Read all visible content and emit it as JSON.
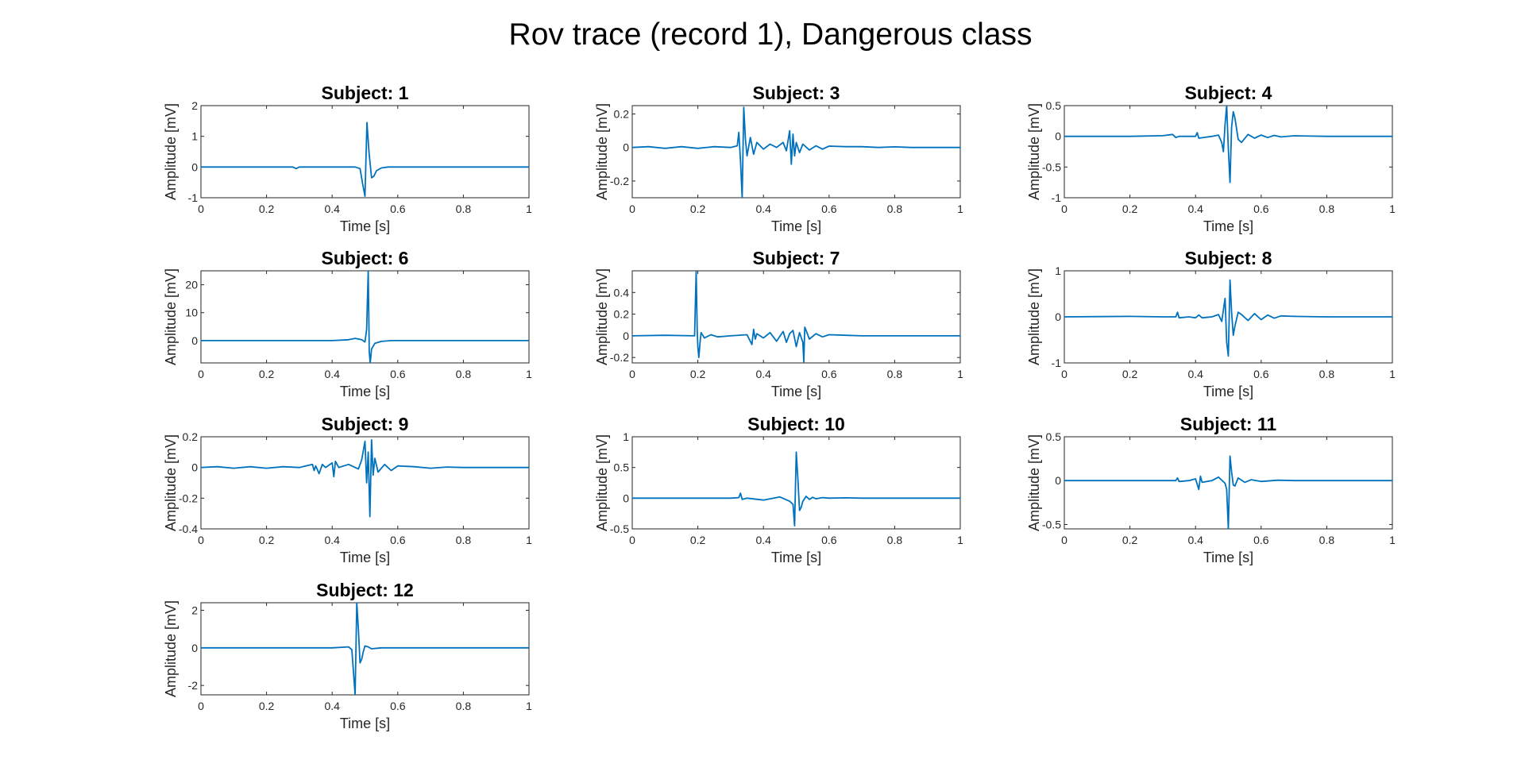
{
  "figure": {
    "title": "Rov trace (record 1), Dangerous class",
    "line_color": "#0072BD"
  },
  "chart_data": [
    {
      "type": "line",
      "title": "Subject: 1",
      "xlabel": "Time [s]",
      "ylabel": "Amplitude [mV]",
      "xlim": [
        0,
        1
      ],
      "ylim": [
        -1,
        2
      ],
      "xticks": [
        0,
        0.2,
        0.4,
        0.6,
        0.8,
        1
      ],
      "xticklabels": [
        "0",
        "0.2",
        "0.4",
        "0.6",
        "0.8",
        "1"
      ],
      "yticks": [
        -1,
        0,
        1,
        2
      ],
      "yticklabels": [
        "-1",
        "0",
        "1",
        "2"
      ],
      "series": [
        {
          "x": [
            0,
            0.28,
            0.29,
            0.3,
            0.47,
            0.485,
            0.493,
            0.5,
            0.506,
            0.512,
            0.52,
            0.527,
            0.535,
            0.55,
            0.57,
            0.6,
            1.0
          ],
          "y": [
            0,
            0,
            -0.05,
            0,
            0,
            -0.05,
            -0.55,
            -0.95,
            1.45,
            0.5,
            -0.35,
            -0.3,
            -0.12,
            -0.03,
            0,
            0,
            0
          ]
        }
      ]
    },
    {
      "type": "line",
      "title": "Subject: 3",
      "xlabel": "Time [s]",
      "ylabel": "Amplitude [mV]",
      "xlim": [
        0,
        1
      ],
      "ylim": [
        -0.3,
        0.25
      ],
      "xticks": [
        0,
        0.2,
        0.4,
        0.6,
        0.8,
        1
      ],
      "xticklabels": [
        "0",
        "0.2",
        "0.4",
        "0.6",
        "0.8",
        "1"
      ],
      "yticks": [
        -0.2,
        0,
        0.2
      ],
      "yticklabels": [
        "-0.2",
        "0",
        "0.2"
      ],
      "series": [
        {
          "x": [
            0,
            0.05,
            0.1,
            0.15,
            0.2,
            0.25,
            0.3,
            0.32,
            0.325,
            0.33,
            0.335,
            0.34,
            0.345,
            0.35,
            0.36,
            0.37,
            0.38,
            0.39,
            0.4,
            0.42,
            0.44,
            0.46,
            0.47,
            0.48,
            0.485,
            0.49,
            0.495,
            0.5,
            0.51,
            0.52,
            0.54,
            0.56,
            0.58,
            0.6,
            0.65,
            0.7,
            0.75,
            0.8,
            0.85,
            1.0
          ],
          "y": [
            0,
            0.005,
            -0.005,
            0.005,
            -0.005,
            0.005,
            0,
            0.01,
            0.09,
            -0.08,
            -0.3,
            0.24,
            0.05,
            -0.05,
            0.06,
            -0.04,
            0.03,
            0.01,
            -0.01,
            0.02,
            0,
            0.03,
            -0.02,
            0.1,
            -0.1,
            0.08,
            -0.05,
            0.03,
            -0.03,
            0.02,
            -0.015,
            0.01,
            -0.01,
            0.008,
            0.005,
            0.005,
            0,
            0.004,
            0,
            0
          ]
        }
      ]
    },
    {
      "type": "line",
      "title": "Subject: 4",
      "xlabel": "Time [s]",
      "ylabel": "Amplitude [mV]",
      "xlim": [
        0,
        1
      ],
      "ylim": [
        -1,
        0.5
      ],
      "xticks": [
        0,
        0.2,
        0.4,
        0.6,
        0.8,
        1
      ],
      "xticklabels": [
        "0",
        "0.2",
        "0.4",
        "0.6",
        "0.8",
        "1"
      ],
      "yticks": [
        -1,
        -0.5,
        0,
        0.5
      ],
      "yticklabels": [
        "-1",
        "-0.5",
        "0",
        "0.5"
      ],
      "series": [
        {
          "x": [
            0,
            0.2,
            0.3,
            0.33,
            0.34,
            0.35,
            0.4,
            0.405,
            0.41,
            0.45,
            0.47,
            0.48,
            0.485,
            0.49,
            0.495,
            0.5,
            0.505,
            0.51,
            0.515,
            0.52,
            0.53,
            0.54,
            0.56,
            0.58,
            0.6,
            0.62,
            0.64,
            0.66,
            0.7,
            0.8,
            1.0
          ],
          "y": [
            0,
            0,
            0.01,
            0.03,
            -0.02,
            0,
            0,
            0.06,
            -0.03,
            0,
            0.02,
            -0.1,
            -0.25,
            0.2,
            0.5,
            -0.2,
            -0.75,
            0.15,
            0.4,
            0.3,
            -0.05,
            -0.1,
            0.03,
            -0.03,
            0.02,
            -0.02,
            0.015,
            -0.01,
            0.008,
            0,
            0
          ]
        }
      ]
    },
    {
      "type": "line",
      "title": "Subject: 6",
      "xlabel": "Time [s]",
      "ylabel": "Amplitude [mV]",
      "xlim": [
        0,
        1
      ],
      "ylim": [
        -8,
        25
      ],
      "xticks": [
        0,
        0.2,
        0.4,
        0.6,
        0.8,
        1
      ],
      "xticklabels": [
        "0",
        "0.2",
        "0.4",
        "0.6",
        "0.8",
        "1"
      ],
      "yticks": [
        0,
        10,
        20
      ],
      "yticklabels": [
        "0",
        "10",
        "20"
      ],
      "series": [
        {
          "x": [
            0,
            0.4,
            0.45,
            0.47,
            0.49,
            0.5,
            0.505,
            0.51,
            0.513,
            0.516,
            0.52,
            0.53,
            0.55,
            0.58,
            0.62,
            1.0
          ],
          "y": [
            0,
            0,
            0.3,
            0.8,
            0.3,
            -0.5,
            4,
            25,
            -4,
            -8,
            -3,
            -1,
            -0.3,
            0,
            0,
            0
          ]
        }
      ]
    },
    {
      "type": "line",
      "title": "Subject: 7",
      "xlabel": "Time [s]",
      "ylabel": "Amplitude [mV]",
      "xlim": [
        0,
        1
      ],
      "ylim": [
        -0.25,
        0.6
      ],
      "xticks": [
        0,
        0.2,
        0.4,
        0.6,
        0.8,
        1
      ],
      "xticklabels": [
        "0",
        "0.2",
        "0.4",
        "0.6",
        "0.8",
        "1"
      ],
      "yticks": [
        -0.2,
        0,
        0.2,
        0.4
      ],
      "yticklabels": [
        "-0.2",
        "0",
        "0.2",
        "0.4"
      ],
      "series": [
        {
          "x": [
            0,
            0.1,
            0.19,
            0.195,
            0.198,
            0.2,
            0.203,
            0.207,
            0.21,
            0.22,
            0.24,
            0.26,
            0.3,
            0.35,
            0.365,
            0.37,
            0.375,
            0.38,
            0.4,
            0.42,
            0.44,
            0.46,
            0.47,
            0.48,
            0.49,
            0.5,
            0.51,
            0.52,
            0.523,
            0.526,
            0.53,
            0.54,
            0.56,
            0.58,
            0.6,
            0.65,
            0.7,
            0.75,
            1.0
          ],
          "y": [
            0,
            0.005,
            0,
            0.6,
            0.05,
            -0.1,
            -0.2,
            -0.05,
            0.03,
            -0.02,
            0.01,
            -0.01,
            0,
            0.01,
            -0.08,
            0.06,
            -0.03,
            0.02,
            -0.02,
            0.03,
            -0.05,
            0.04,
            -0.06,
            0.02,
            0.05,
            -0.1,
            0.03,
            -0.06,
            -0.24,
            0.08,
            0.05,
            -0.03,
            0.02,
            -0.01,
            0.01,
            0.005,
            0,
            0,
            0
          ]
        }
      ]
    },
    {
      "type": "line",
      "title": "Subject: 8",
      "xlabel": "Time [s]",
      "ylabel": "Amplitude [mV]",
      "xlim": [
        0,
        1
      ],
      "ylim": [
        -1,
        1
      ],
      "xticks": [
        0,
        0.2,
        0.4,
        0.6,
        0.8,
        1
      ],
      "xticklabels": [
        "0",
        "0.2",
        "0.4",
        "0.6",
        "0.8",
        "1"
      ],
      "yticks": [
        -1,
        0,
        1
      ],
      "yticklabels": [
        "-1",
        "0",
        "1"
      ],
      "series": [
        {
          "x": [
            0,
            0.2,
            0.3,
            0.34,
            0.345,
            0.35,
            0.38,
            0.4,
            0.41,
            0.42,
            0.45,
            0.47,
            0.48,
            0.49,
            0.495,
            0.5,
            0.505,
            0.51,
            0.515,
            0.52,
            0.53,
            0.54,
            0.56,
            0.58,
            0.6,
            0.62,
            0.64,
            0.66,
            0.7,
            0.8,
            1.0
          ],
          "y": [
            0,
            0.01,
            0,
            0,
            0.1,
            -0.02,
            0,
            -0.02,
            0.04,
            -0.02,
            0,
            0.05,
            -0.1,
            0.4,
            -0.55,
            -0.85,
            0.8,
            0.1,
            -0.4,
            -0.2,
            0.1,
            0.05,
            -0.08,
            0.07,
            -0.06,
            0.04,
            -0.03,
            0.02,
            0.01,
            0,
            0
          ]
        }
      ]
    },
    {
      "type": "line",
      "title": "Subject: 9",
      "xlabel": "Time [s]",
      "ylabel": "Amplitude [mV]",
      "xlim": [
        0,
        1
      ],
      "ylim": [
        -0.4,
        0.2
      ],
      "xticks": [
        0,
        0.2,
        0.4,
        0.6,
        0.8,
        1
      ],
      "xticklabels": [
        "0",
        "0.2",
        "0.4",
        "0.6",
        "0.8",
        "1"
      ],
      "yticks": [
        -0.4,
        -0.2,
        0,
        0.2
      ],
      "yticklabels": [
        "-0.4",
        "-0.2",
        "0",
        "0.2"
      ],
      "series": [
        {
          "x": [
            0,
            0.05,
            0.1,
            0.15,
            0.2,
            0.25,
            0.3,
            0.34,
            0.345,
            0.35,
            0.36,
            0.37,
            0.38,
            0.4,
            0.405,
            0.41,
            0.42,
            0.45,
            0.48,
            0.49,
            0.5,
            0.505,
            0.51,
            0.515,
            0.52,
            0.525,
            0.53,
            0.54,
            0.56,
            0.58,
            0.6,
            0.65,
            0.7,
            0.75,
            0.8,
            0.85,
            1.0
          ],
          "y": [
            0,
            0.005,
            -0.005,
            0.005,
            -0.005,
            0.005,
            0,
            0.02,
            -0.02,
            0.01,
            -0.04,
            0.02,
            0,
            0.03,
            -0.06,
            0.04,
            0,
            0.02,
            -0.01,
            0.05,
            0.17,
            -0.1,
            0.1,
            -0.32,
            0.18,
            -0.05,
            0.06,
            -0.03,
            0.02,
            -0.02,
            0.01,
            0.005,
            -0.005,
            0.003,
            0,
            0,
            0
          ]
        }
      ]
    },
    {
      "type": "line",
      "title": "Subject: 10",
      "xlabel": "Time [s]",
      "ylabel": "Amplitude [mV]",
      "xlim": [
        0,
        1
      ],
      "ylim": [
        -0.5,
        1
      ],
      "xticks": [
        0,
        0.2,
        0.4,
        0.6,
        0.8,
        1
      ],
      "xticklabels": [
        "0",
        "0.2",
        "0.4",
        "0.6",
        "0.8",
        "1"
      ],
      "yticks": [
        -0.5,
        0,
        0.5,
        1
      ],
      "yticklabels": [
        "-0.5",
        "0",
        "0.5",
        "1"
      ],
      "series": [
        {
          "x": [
            0,
            0.2,
            0.3,
            0.325,
            0.33,
            0.335,
            0.35,
            0.4,
            0.45,
            0.48,
            0.49,
            0.495,
            0.5,
            0.505,
            0.51,
            0.515,
            0.52,
            0.53,
            0.54,
            0.55,
            0.56,
            0.58,
            0.6,
            0.65,
            0.7,
            1.0
          ],
          "y": [
            0,
            0,
            0,
            0.01,
            0.08,
            -0.02,
            0,
            -0.03,
            0.02,
            -0.05,
            -0.1,
            -0.45,
            0.75,
            0.3,
            -0.2,
            -0.15,
            -0.05,
            0.03,
            -0.02,
            0.015,
            -0.01,
            0.01,
            0,
            0.005,
            0,
            0
          ]
        }
      ]
    },
    {
      "type": "line",
      "title": "Subject: 11",
      "xlabel": "Time [s]",
      "ylabel": "Amplitude [mV]",
      "xlim": [
        0,
        1
      ],
      "ylim": [
        -0.55,
        0.5
      ],
      "xticks": [
        0,
        0.2,
        0.4,
        0.6,
        0.8,
        1
      ],
      "xticklabels": [
        "0",
        "0.2",
        "0.4",
        "0.6",
        "0.8",
        "1"
      ],
      "yticks": [
        -0.5,
        0,
        0.5
      ],
      "yticklabels": [
        "-0.5",
        "0",
        "0.5"
      ],
      "series": [
        {
          "x": [
            0,
            0.2,
            0.3,
            0.34,
            0.345,
            0.35,
            0.38,
            0.4,
            0.41,
            0.415,
            0.42,
            0.45,
            0.47,
            0.49,
            0.495,
            0.5,
            0.505,
            0.51,
            0.515,
            0.52,
            0.53,
            0.55,
            0.57,
            0.6,
            0.65,
            0.7,
            1.0
          ],
          "y": [
            0,
            0,
            0,
            0,
            0.03,
            -0.01,
            0,
            0.02,
            -0.1,
            0.05,
            -0.02,
            0,
            0.04,
            -0.03,
            -0.1,
            -0.55,
            0.28,
            0.1,
            -0.05,
            -0.06,
            0.03,
            -0.02,
            0.01,
            -0.01,
            0.005,
            0,
            0
          ]
        }
      ]
    },
    {
      "type": "line",
      "title": "Subject: 12",
      "xlabel": "Time [s]",
      "ylabel": "Amplitude [mV]",
      "xlim": [
        0,
        1
      ],
      "ylim": [
        -2.5,
        2.4
      ],
      "xticks": [
        0,
        0.2,
        0.4,
        0.6,
        0.8,
        1
      ],
      "xticklabels": [
        "0",
        "0.2",
        "0.4",
        "0.6",
        "0.8",
        "1"
      ],
      "yticks": [
        -2,
        0,
        2
      ],
      "yticklabels": [
        "-2",
        "0",
        "2"
      ],
      "series": [
        {
          "x": [
            0,
            0.2,
            0.4,
            0.45,
            0.46,
            0.47,
            0.475,
            0.48,
            0.485,
            0.49,
            0.495,
            0.5,
            0.51,
            0.52,
            0.55,
            0.6,
            1.0
          ],
          "y": [
            0,
            0,
            0,
            0.05,
            -0.1,
            -2.5,
            2.4,
            1.0,
            -0.8,
            -0.6,
            -0.2,
            0.1,
            0.05,
            -0.05,
            0,
            0,
            0
          ]
        }
      ]
    }
  ]
}
